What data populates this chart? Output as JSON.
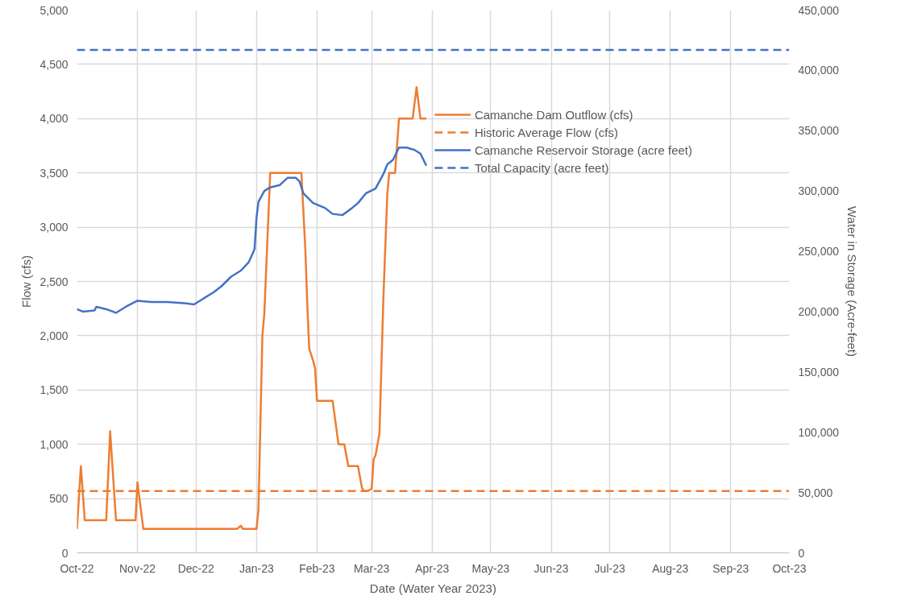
{
  "chart_data": {
    "type": "line",
    "xlabel": "Date (Water Year 2023)",
    "ylabel": "Flow (cfs)",
    "y2label": "Water in Storage (Acre-feet)",
    "xlim": [
      "2022-10-01",
      "2023-10-01"
    ],
    "xticks": [
      {
        "value": "2022-10-01",
        "label": "Oct-22"
      },
      {
        "value": "2022-11-01",
        "label": "Nov-22"
      },
      {
        "value": "2022-12-01",
        "label": "Dec-22"
      },
      {
        "value": "2023-01-01",
        "label": "Jan-23"
      },
      {
        "value": "2023-02-01",
        "label": "Feb-23"
      },
      {
        "value": "2023-03-01",
        "label": "Mar-23"
      },
      {
        "value": "2023-04-01",
        "label": "Apr-23"
      },
      {
        "value": "2023-05-01",
        "label": "May-23"
      },
      {
        "value": "2023-06-01",
        "label": "Jun-23"
      },
      {
        "value": "2023-07-01",
        "label": "Jul-23"
      },
      {
        "value": "2023-08-01",
        "label": "Aug-23"
      },
      {
        "value": "2023-09-01",
        "label": "Sep-23"
      },
      {
        "value": "2023-10-01",
        "label": "Oct-23"
      }
    ],
    "ylim": [
      0,
      5000
    ],
    "yticks": [
      0,
      500,
      {
        "value": 1000,
        "label": "1,000"
      },
      {
        "value": 1500,
        "label": "1,500"
      },
      {
        "value": 2000,
        "label": "2,000"
      },
      {
        "value": 2500,
        "label": "2,500"
      },
      {
        "value": 3000,
        "label": "3,000"
      },
      {
        "value": 3500,
        "label": "3,500"
      },
      {
        "value": 4000,
        "label": "4,000"
      },
      {
        "value": 4500,
        "label": "4,500"
      },
      {
        "value": 5000,
        "label": "5,000"
      }
    ],
    "y2lim": [
      0,
      450000
    ],
    "y2ticks": [
      0,
      {
        "value": 50000,
        "label": "50,000"
      },
      {
        "value": 100000,
        "label": "100,000"
      },
      {
        "value": 150000,
        "label": "150,000"
      },
      {
        "value": 200000,
        "label": "200,000"
      },
      {
        "value": 250000,
        "label": "250,000"
      },
      {
        "value": 300000,
        "label": "300,000"
      },
      {
        "value": 350000,
        "label": "350,000"
      },
      {
        "value": 400000,
        "label": "400,000"
      },
      {
        "value": 450000,
        "label": "450,000"
      }
    ],
    "grid": true,
    "legend": "top right",
    "series": [
      {
        "name": "Camanche Dam Outflow (cfs)",
        "color": "#ed7d31",
        "x": [
          "2022-10-01",
          "2022-10-03",
          "2022-10-05",
          "2022-10-16",
          "2022-10-18",
          "2022-10-21",
          "2022-10-31",
          "2022-11-01",
          "2022-11-04",
          "2022-12-22",
          "2022-12-24",
          "2022-12-25",
          "2023-01-01",
          "2023-01-02",
          "2023-01-04",
          "2023-01-05",
          "2023-01-08",
          "2023-01-24",
          "2023-01-26",
          "2023-01-27",
          "2023-01-28",
          "2023-01-30",
          "2023-01-31",
          "2023-02-01",
          "2023-02-09",
          "2023-02-12",
          "2023-02-15",
          "2023-02-17",
          "2023-02-22",
          "2023-02-24",
          "2023-02-25",
          "2023-02-27",
          "2023-03-01",
          "2023-03-02",
          "2023-03-03",
          "2023-03-05",
          "2023-03-06",
          "2023-03-07",
          "2023-03-09",
          "2023-03-10",
          "2023-03-13",
          "2023-03-15",
          "2023-03-22",
          "2023-03-24",
          "2023-03-26",
          "2023-03-29"
        ],
        "values": [
          220,
          800,
          300,
          300,
          1120,
          300,
          300,
          650,
          220,
          220,
          250,
          220,
          220,
          400,
          2000,
          2200,
          3500,
          3500,
          2800,
          2300,
          1880,
          1770,
          1700,
          1400,
          1400,
          1000,
          1000,
          800,
          800,
          600,
          570,
          570,
          590,
          860,
          900,
          1100,
          1730,
          2340,
          3300,
          3500,
          3500,
          4000,
          4000,
          4290,
          4000,
          4000
        ]
      },
      {
        "name": "Camanche Reservoir Storage (acre feet)",
        "color": "#4472c4",
        "axis": "y2",
        "x": [
          "2022-10-01",
          "2022-10-04",
          "2022-10-10",
          "2022-10-11",
          "2022-10-16",
          "2022-10-21",
          "2022-10-26",
          "2022-11-01",
          "2022-11-08",
          "2022-11-16",
          "2022-11-25",
          "2022-11-30",
          "2022-12-03",
          "2022-12-10",
          "2022-12-14",
          "2022-12-19",
          "2022-12-24",
          "2022-12-28",
          "2022-12-30",
          "2022-12-31",
          "2023-01-01",
          "2023-01-02",
          "2023-01-05",
          "2023-01-08",
          "2023-01-13",
          "2023-01-15",
          "2023-01-17",
          "2023-01-21",
          "2023-01-23",
          "2023-01-25",
          "2023-01-30",
          "2023-02-05",
          "2023-02-09",
          "2023-02-14",
          "2023-02-19",
          "2023-02-22",
          "2023-02-26",
          "2023-03-03",
          "2023-03-07",
          "2023-03-09",
          "2023-03-12",
          "2023-03-15",
          "2023-03-19",
          "2023-03-23",
          "2023-03-26",
          "2023-03-29"
        ],
        "values": [
          202000,
          200000,
          201000,
          204000,
          202000,
          199000,
          204000,
          209000,
          208000,
          208000,
          207000,
          206000,
          209000,
          216000,
          221000,
          229000,
          234000,
          241000,
          248000,
          252000,
          278000,
          291000,
          300000,
          303000,
          305000,
          308000,
          311000,
          311000,
          308000,
          298000,
          290000,
          286000,
          281000,
          280000,
          286000,
          290000,
          298000,
          302000,
          314000,
          322000,
          326000,
          336000,
          336000,
          334000,
          331000,
          321000
        ]
      }
    ],
    "ref_lines": [
      {
        "axis": "y",
        "value": 570,
        "label": "Historic Average Flow (cfs)",
        "color": "#ed7d31",
        "line_style": "dashed"
      },
      {
        "axis": "y2",
        "value": 417000,
        "label": "Total Capacity (acre feet)",
        "color": "#4472c4",
        "line_style": "dashed"
      }
    ]
  }
}
